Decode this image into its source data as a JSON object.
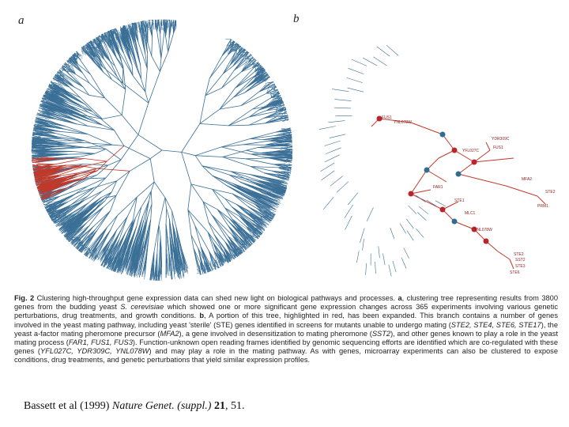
{
  "figure": {
    "panel_a_label": "a",
    "panel_b_label": "b",
    "colors": {
      "tree_blue": "#3a6f96",
      "highlight_red": "#c0392b",
      "node_red": "#b8252b",
      "node_blue": "#2f6e93"
    },
    "gene_labels": [
      "FUS1",
      "YNL078W",
      "YDR309C",
      "FUS1",
      "YFL027C",
      "MFA2",
      "STE2",
      "FAR1",
      "STE1",
      "MLC1",
      "YNL078W",
      "STE2",
      "SST2",
      "STE3",
      "STE6",
      "PRM1"
    ]
  },
  "caption": {
    "fig_label": "Fig. 2",
    "text_1": " Clustering high-throughput gene expression data can shed new light on biological pathways and processes. ",
    "a_label": "a",
    "text_2": ", clustering tree representing results from 3800 genes from the budding yeast ",
    "species": "S. cerevisiae",
    "text_3": " which showed one or more significant gene expression changes across 365 experiments involving various genetic perturbations, drug treatments, and growth conditions. ",
    "b_label": "b",
    "text_4": ", A portion of this tree, highlighted in red, has been expanded. This branch contains a number of genes involved in the yeast mating pathway, including yeast 'sterile' (STE) genes identified in screens for mutants unable to undergo mating (",
    "ste_genes": "STE2, STE4, STE6, STE17",
    "text_5": "), the yeast a-factor mating pheromone precursor (",
    "mfa2": "MFA2",
    "text_6": "), a gene involved in desensitization to mating pheromone (",
    "sst2": "SST2",
    "text_7": "), and other genes known to play a role in the yeast mating process (",
    "far_genes": "FAR1, FUS1, FUS3",
    "text_8": "). Function-unknown open reading frames identified by genomic sequencing efforts are identified which are co-regulated with these genes (",
    "orfs": "YFL027C, YDR309C, YNL078W",
    "text_9": ") and may play a role in the mating pathway. As with genes, microarray experiments can also be clustered to expose conditions, drug treatments, and genetic perturbations that yield similar expression profiles."
  },
  "citation": {
    "authors": "Bassett et al (1999)",
    "journal": "Nature Genet. (suppl.)",
    "volume": "21",
    "pages": ", 51."
  }
}
